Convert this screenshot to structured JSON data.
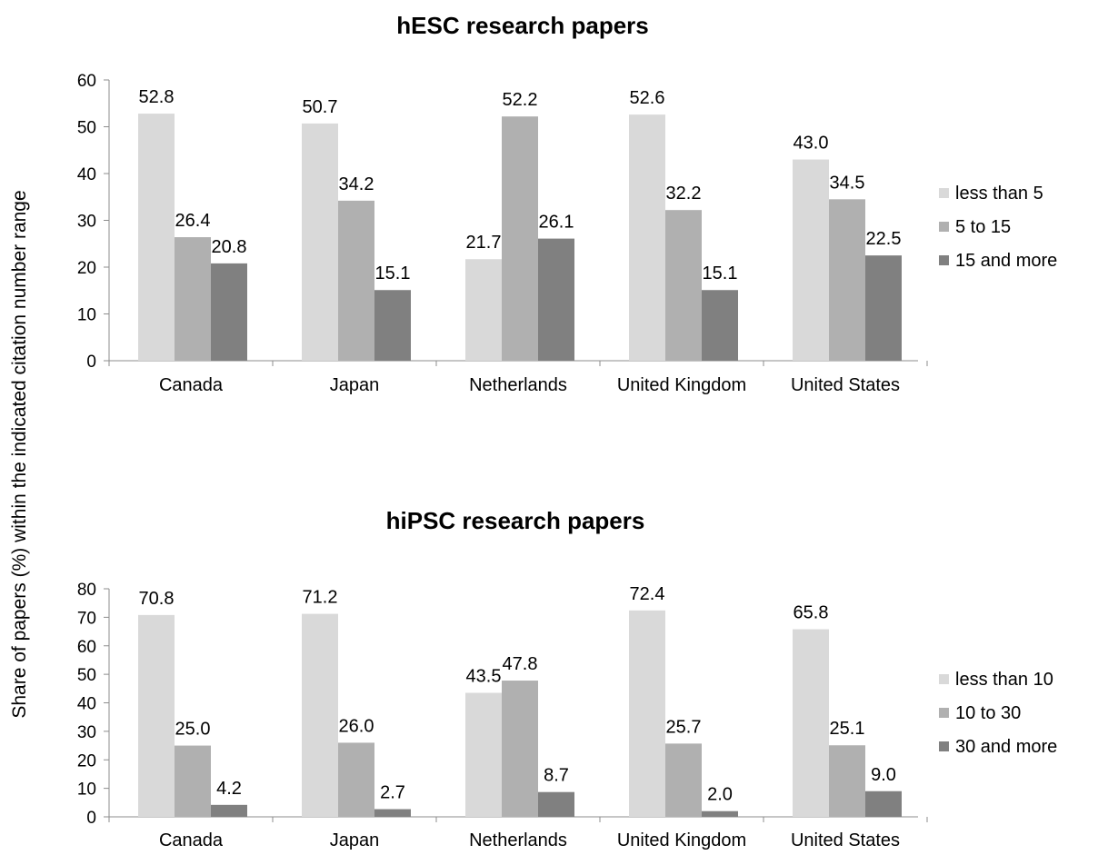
{
  "ylabel": "Share of papers (%) within the indicated citation number range",
  "chart_data": [
    {
      "type": "bar",
      "title": "hESC research papers",
      "categories": [
        "Canada",
        "Japan",
        "Netherlands",
        "United Kingdom",
        "United States"
      ],
      "ylim": [
        0,
        60
      ],
      "yticks": [
        "0",
        "10",
        "20",
        "30",
        "40",
        "50",
        "60"
      ],
      "grid": false,
      "legend": "right",
      "series": [
        {
          "name": "less than 5",
          "color": "#d9d9d9",
          "values": [
            52.8,
            50.7,
            21.7,
            52.6,
            43.0
          ],
          "labels": [
            "52.8",
            "50.7",
            "21.7",
            "52.6",
            "43.0"
          ]
        },
        {
          "name": "5 to 15",
          "color": "#b0b0b0",
          "values": [
            26.4,
            34.2,
            52.2,
            32.2,
            34.5
          ],
          "labels": [
            "26.4",
            "34.2",
            "52.2",
            "32.2",
            "34.5"
          ]
        },
        {
          "name": "15 and more",
          "color": "#808080",
          "values": [
            20.8,
            15.1,
            26.1,
            15.1,
            22.5
          ],
          "labels": [
            "20.8",
            "15.1",
            "26.1",
            "15.1",
            "22.5"
          ]
        }
      ]
    },
    {
      "type": "bar",
      "title": "hiPSC research papers",
      "categories": [
        "Canada",
        "Japan",
        "Netherlands",
        "United Kingdom",
        "United States"
      ],
      "ylim": [
        0,
        80
      ],
      "yticks": [
        "0",
        "10",
        "20",
        "30",
        "40",
        "50",
        "60",
        "70",
        "80"
      ],
      "grid": false,
      "legend": "right",
      "series": [
        {
          "name": "less than 10",
          "color": "#d9d9d9",
          "values": [
            70.8,
            71.2,
            43.5,
            72.4,
            65.8
          ],
          "labels": [
            "70.8",
            "71.2",
            "43.5",
            "72.4",
            "65.8"
          ]
        },
        {
          "name": "10 to 30",
          "color": "#b0b0b0",
          "values": [
            25.0,
            26.0,
            47.8,
            25.7,
            25.1
          ],
          "labels": [
            "25.0",
            "26.0",
            "47.8",
            "25.7",
            "25.1"
          ]
        },
        {
          "name": "30 and more",
          "color": "#808080",
          "values": [
            4.2,
            2.7,
            8.7,
            2.0,
            9.0
          ],
          "labels": [
            "4.2",
            "2.7",
            "8.7",
            "2.0",
            "9.0"
          ]
        }
      ]
    }
  ]
}
